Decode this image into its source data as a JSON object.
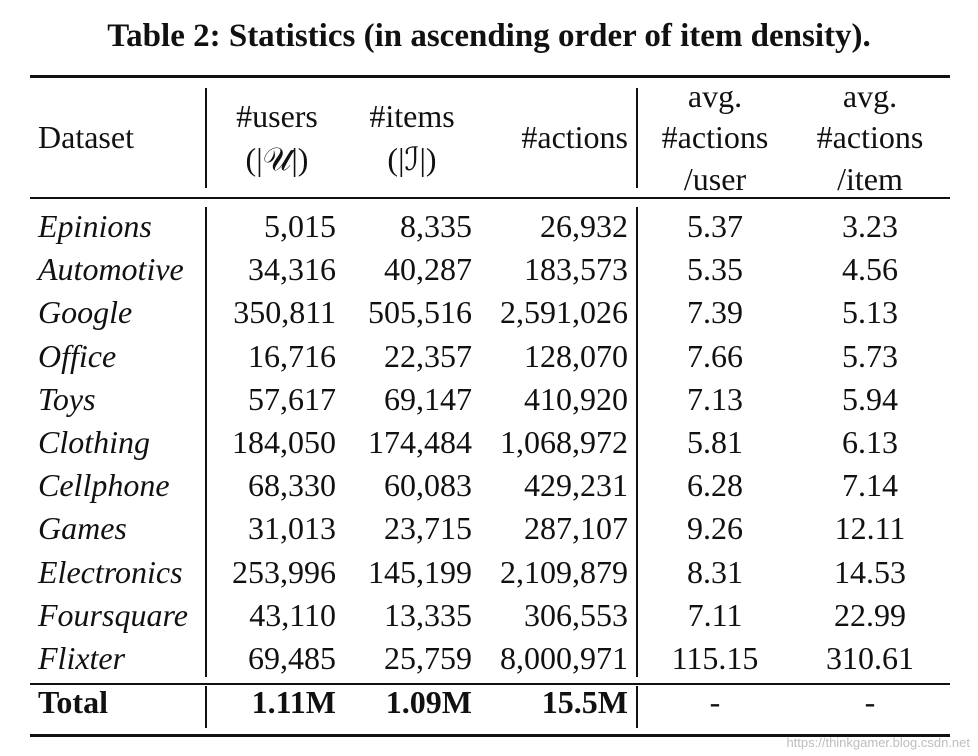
{
  "caption": "Table 2: Statistics (in ascending order of item density).",
  "header": {
    "dataset": "Dataset",
    "users_l1": "#users",
    "users_l2": "(|𝒰|)",
    "items_l1": "#items",
    "items_l2": "(|ℐ|)",
    "actions": "#actions",
    "apu_l1": "avg.",
    "apu_l2": "#actions",
    "apu_l3": "/user",
    "api_l1": "avg.",
    "api_l2": "#actions",
    "api_l3": "/item"
  },
  "rows": [
    {
      "dataset": "Epinions",
      "users": "5,015",
      "items": "8,335",
      "actions": "26,932",
      "apu": "5.37",
      "api": "3.23"
    },
    {
      "dataset": "Automotive",
      "users": "34,316",
      "items": "40,287",
      "actions": "183,573",
      "apu": "5.35",
      "api": "4.56"
    },
    {
      "dataset": "Google",
      "users": "350,811",
      "items": "505,516",
      "actions": "2,591,026",
      "apu": "7.39",
      "api": "5.13"
    },
    {
      "dataset": "Office",
      "users": "16,716",
      "items": "22,357",
      "actions": "128,070",
      "apu": "7.66",
      "api": "5.73"
    },
    {
      "dataset": "Toys",
      "users": "57,617",
      "items": "69,147",
      "actions": "410,920",
      "apu": "7.13",
      "api": "5.94"
    },
    {
      "dataset": "Clothing",
      "users": "184,050",
      "items": "174,484",
      "actions": "1,068,972",
      "apu": "5.81",
      "api": "6.13"
    },
    {
      "dataset": "Cellphone",
      "users": "68,330",
      "items": "60,083",
      "actions": "429,231",
      "apu": "6.28",
      "api": "7.14"
    },
    {
      "dataset": "Games",
      "users": "31,013",
      "items": "23,715",
      "actions": "287,107",
      "apu": "9.26",
      "api": "12.11"
    },
    {
      "dataset": "Electronics",
      "users": "253,996",
      "items": "145,199",
      "actions": "2,109,879",
      "apu": "8.31",
      "api": "14.53"
    },
    {
      "dataset": "Foursquare",
      "users": "43,110",
      "items": "13,335",
      "actions": "306,553",
      "apu": "7.11",
      "api": "22.99"
    },
    {
      "dataset": "Flixter",
      "users": "69,485",
      "items": "25,759",
      "actions": "8,000,971",
      "apu": "115.15",
      "api": "310.61"
    }
  ],
  "total": {
    "dataset": "Total",
    "users": "1.11M",
    "items": "1.09M",
    "actions": "15.5M",
    "apu": "-",
    "api": "-"
  },
  "watermark": "https://thinkgamer.blog.csdn.net"
}
